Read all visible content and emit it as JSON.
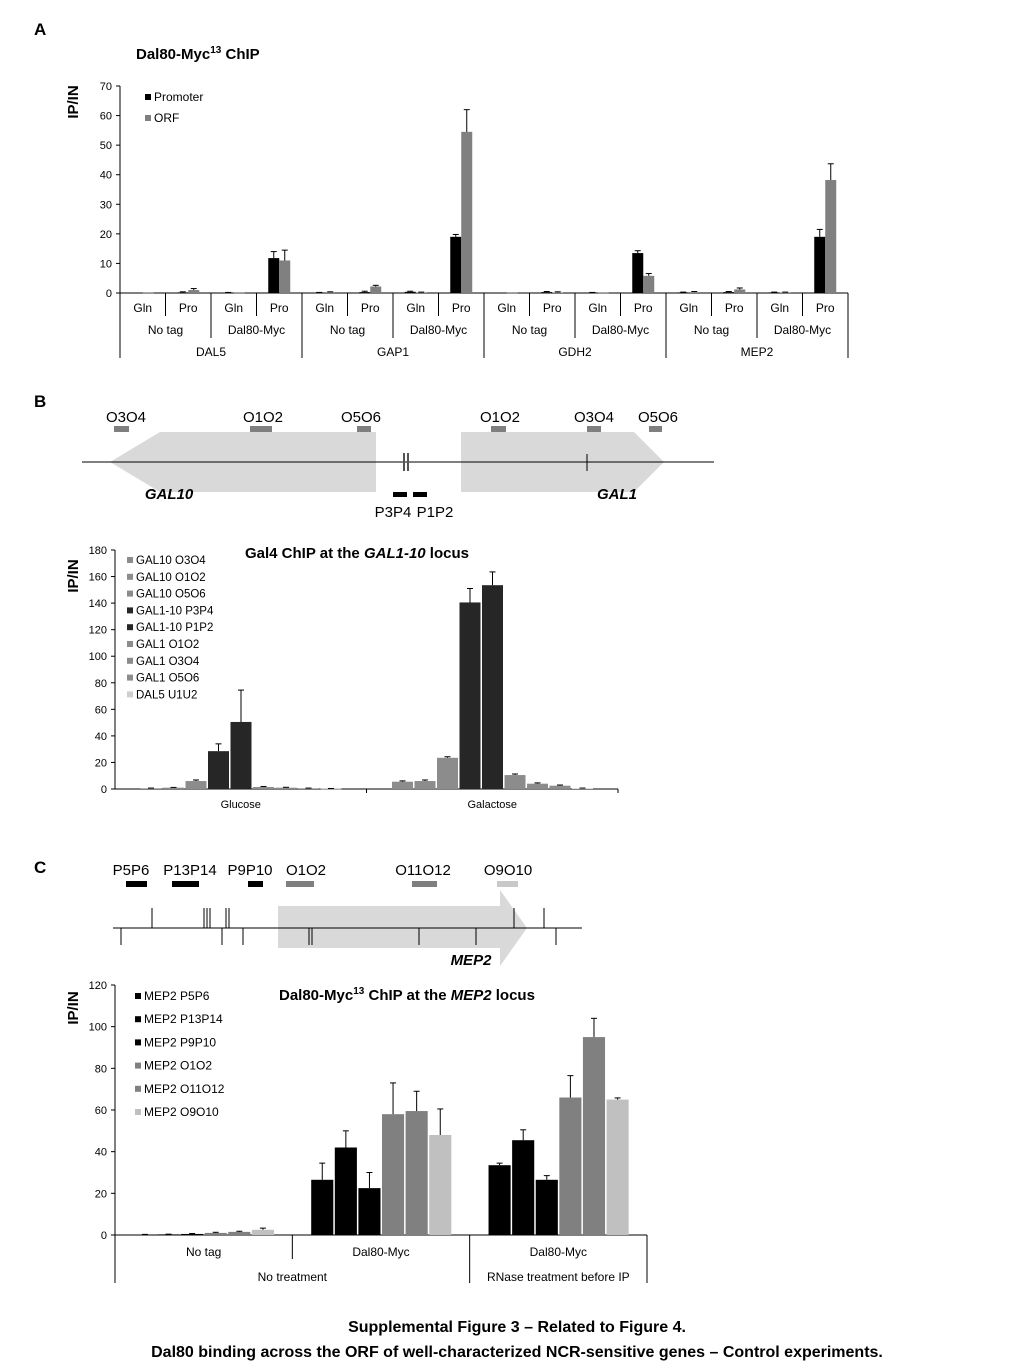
{
  "panel_labels": {
    "a": "A",
    "b": "B",
    "c": "C"
  },
  "caption": {
    "line1": "Supplemental Figure 3 – Related to Figure 4.",
    "line2": "Dal80 binding across the ORF of well-characterized NCR-sensitive genes – Control experiments."
  },
  "panel_b_map": {
    "sites_left": [
      "O3O4",
      "O1O2",
      "O5O6"
    ],
    "sites_right": [
      "O1O2",
      "O3O4",
      "O5O6"
    ],
    "gene_left": "GAL10",
    "gene_right": "GAL1",
    "primers": [
      "P3P4",
      "P1P2"
    ]
  },
  "panel_c_map": {
    "sites": [
      "P5P6",
      "P13P14",
      "P9P10",
      "O1O2",
      "O11O12",
      "O9O10"
    ],
    "gene": "MEP2"
  },
  "chart_data": [
    {
      "id": "A",
      "type": "bar",
      "title": "Dal80-Myc",
      "title_sup": "13",
      "title_suffix": " ChIP",
      "ylabel": "IP/IN",
      "ylim": [
        0,
        70
      ],
      "yticks": [
        0,
        10,
        20,
        30,
        40,
        50,
        60,
        70
      ],
      "legend_position": "top-left",
      "categories": [
        "Gln",
        "Pro",
        "Gln",
        "Pro",
        "Gln",
        "Pro",
        "Gln",
        "Pro",
        "Gln",
        "Pro",
        "Gln",
        "Pro",
        "Gln",
        "Pro",
        "Gln",
        "Pro"
      ],
      "group_level2": [
        "No tag",
        "Dal80-Myc",
        "No tag",
        "Dal80-Myc",
        "No tag",
        "Dal80-Myc",
        "No tag",
        "Dal80-Myc"
      ],
      "group_level3": [
        "DAL5",
        "GAP1",
        "GDH2",
        "MEP2"
      ],
      "series": [
        {
          "name": "Promoter",
          "color": "#000000",
          "values": [
            0,
            0.2,
            0.1,
            11.8,
            0.1,
            0.3,
            0.4,
            19,
            0.1,
            0.3,
            0.1,
            13.5,
            0.2,
            0.3,
            0.2,
            19
          ],
          "errors": [
            0,
            0.2,
            0.1,
            2.2,
            0.1,
            0.3,
            0.2,
            0.8,
            0,
            0.2,
            0.1,
            0.8,
            0.1,
            0.2,
            0.1,
            2.5
          ]
        },
        {
          "name": "ORF",
          "color": "#808080",
          "values": [
            0.1,
            1,
            0.1,
            11,
            0.3,
            2.2,
            0.2,
            54.5,
            0.1,
            0.2,
            0.1,
            5.8,
            0.3,
            1.2,
            0.2,
            38.2
          ],
          "errors": [
            0,
            0.5,
            0,
            3.5,
            0.1,
            0.4,
            0.1,
            7.5,
            0,
            0.2,
            0,
            0.8,
            0.2,
            0.5,
            0.1,
            5.5
          ]
        }
      ]
    },
    {
      "id": "B",
      "type": "bar",
      "title": "Gal4 ChIP at the",
      "title_italic": "GAL1-10",
      "title_suffix": " locus",
      "ylabel": "IP/IN",
      "ylim": [
        0,
        180
      ],
      "yticks": [
        0,
        20,
        40,
        60,
        80,
        100,
        120,
        140,
        160,
        180
      ],
      "legend_position": "top-left",
      "categories": [
        "Glucose",
        "Galactose"
      ],
      "series": [
        {
          "name": "GAL10 O3O4",
          "color": "#8c8c8c",
          "values": [
            0.5,
            5.5
          ],
          "errors": [
            0.2,
            0.6
          ]
        },
        {
          "name": "GAL10 O1O2",
          "color": "#8c8c8c",
          "values": [
            1.0,
            6.0
          ],
          "errors": [
            0.2,
            0.8
          ]
        },
        {
          "name": "GAL10 O5O6",
          "color": "#8c8c8c",
          "values": [
            6.0,
            23.5
          ],
          "errors": [
            0.8,
            0.8
          ]
        },
        {
          "name": "GAL1-10  P3P4",
          "color": "#262626",
          "values": [
            28.5,
            140.5
          ],
          "errors": [
            5.5,
            10.5
          ]
        },
        {
          "name": "GAL1-10  P1P2",
          "color": "#262626",
          "values": [
            50.5,
            153.5
          ],
          "errors": [
            24.0,
            10.0
          ]
        },
        {
          "name": "GAL1  O1O2",
          "color": "#8c8c8c",
          "values": [
            1.5,
            10.5
          ],
          "errors": [
            0.4,
            0.8
          ]
        },
        {
          "name": "GAL1  O3O4",
          "color": "#8c8c8c",
          "values": [
            1.0,
            4.0
          ],
          "errors": [
            0.3,
            0.6
          ]
        },
        {
          "name": "GAL1  O5O6",
          "color": "#8c8c8c",
          "values": [
            0.5,
            2.5
          ],
          "errors": [
            0.2,
            0.5
          ]
        },
        {
          "name": "DAL5 U1U2",
          "color": "#cfcfcf",
          "values": [
            0.3,
            0.5
          ],
          "errors": [
            0.1,
            0.2
          ]
        }
      ]
    },
    {
      "id": "C",
      "type": "bar",
      "title": "Dal80-Myc",
      "title_sup": "13",
      "title_suffix": " ChIP at the ",
      "title_italic": "MEP2",
      "title_suffix2": " locus",
      "ylabel": "IP/IN",
      "ylim": [
        0,
        120
      ],
      "yticks": [
        0,
        20,
        40,
        60,
        80,
        100,
        120
      ],
      "legend_position": "top-left",
      "categories": [
        "No tag",
        "Dal80-Myc",
        "Dal80-Myc"
      ],
      "group_level2": [
        "No treatment",
        "RNase treatment before IP"
      ],
      "series": [
        {
          "name": "MEP2 P5P6",
          "color": "#000000",
          "values": [
            0.2,
            26.5,
            33.5
          ],
          "errors": [
            0.1,
            8.0,
            1.0
          ]
        },
        {
          "name": "MEP2 P13P14",
          "color": "#000000",
          "values": [
            0.3,
            42.0,
            45.5
          ],
          "errors": [
            0.1,
            8.0,
            5.0
          ]
        },
        {
          "name": "MEP2 P9P10",
          "color": "#000000",
          "values": [
            0.5,
            22.5,
            26.5
          ],
          "errors": [
            0.2,
            7.5,
            2.0
          ]
        },
        {
          "name": "MEP2 O1O2",
          "color": "#808080",
          "values": [
            1.0,
            58.0,
            66.0
          ],
          "errors": [
            0.3,
            15.0,
            10.5
          ]
        },
        {
          "name": "MEP2 O11O12",
          "color": "#808080",
          "values": [
            1.5,
            59.5,
            95.0
          ],
          "errors": [
            0.3,
            9.5,
            9.0
          ]
        },
        {
          "name": "MEP2 O9O10",
          "color": "#c0c0c0",
          "values": [
            2.5,
            48.0,
            65.0
          ],
          "errors": [
            0.8,
            12.5,
            0.8
          ]
        }
      ]
    }
  ]
}
